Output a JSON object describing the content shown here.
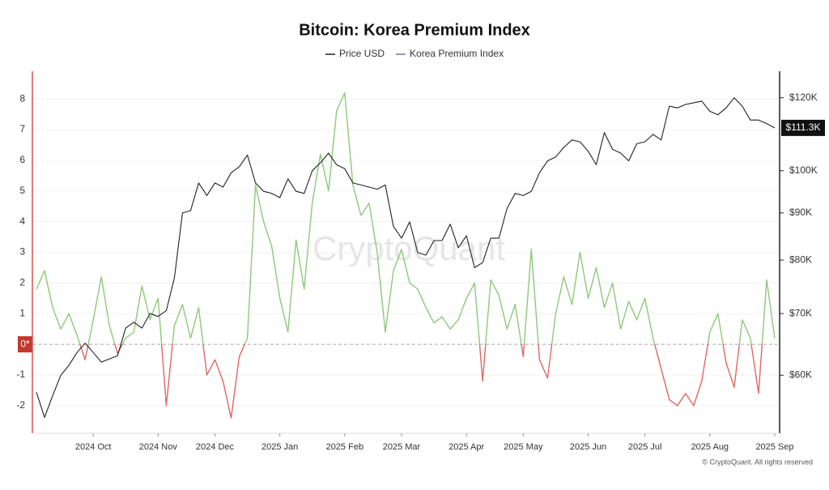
{
  "chart_data": {
    "type": "line",
    "title": "Bitcoin: Korea Premium Index",
    "watermark": "CryptoQuant",
    "footer": "© CryptoQuant. All rights reserved",
    "price_tag": "$111.3K",
    "categories": [
      null,
      null,
      null,
      null,
      null,
      null,
      null,
      "2024 Oct",
      null,
      null,
      null,
      null,
      null,
      null,
      null,
      "2024 Nov",
      null,
      null,
      null,
      null,
      null,
      null,
      "2024 Dec",
      null,
      null,
      null,
      null,
      null,
      null,
      null,
      "2025 Jan",
      null,
      null,
      null,
      null,
      null,
      null,
      null,
      "2025 Feb",
      null,
      null,
      null,
      null,
      null,
      null,
      "2025 Mar",
      null,
      null,
      null,
      null,
      null,
      null,
      null,
      "2025 Apr",
      null,
      null,
      null,
      null,
      null,
      null,
      "2025 May",
      null,
      null,
      null,
      null,
      null,
      null,
      null,
      "2025 Jun",
      null,
      null,
      null,
      null,
      null,
      null,
      "2025 Jul",
      null,
      null,
      null,
      null,
      null,
      null,
      null,
      "2025 Aug",
      null,
      null,
      null,
      null,
      null,
      null,
      null,
      "2025 Sep"
    ],
    "series": [
      {
        "name": "Price USD",
        "color": "#222222",
        "axis": "y2",
        "values": [
          57500,
          54000,
          57000,
          60000,
          61500,
          63500,
          65000,
          63500,
          62000,
          62500,
          63000,
          67500,
          68500,
          67500,
          70000,
          69500,
          70500,
          76500,
          90000,
          90500,
          97000,
          94000,
          97000,
          96000,
          99500,
          101000,
          104000,
          97000,
          95000,
          94500,
          93500,
          98000,
          95000,
          94500,
          100000,
          102000,
          104500,
          101500,
          100500,
          97000,
          96500,
          96000,
          95500,
          96500,
          87000,
          84500,
          88000,
          81500,
          81000,
          84000,
          84000,
          87500,
          82500,
          85000,
          78500,
          79500,
          84500,
          84500,
          91000,
          94500,
          94000,
          95000,
          99500,
          102500,
          103500,
          106000,
          108000,
          107500,
          105000,
          101500,
          110000,
          105500,
          104500,
          102500,
          107000,
          107500,
          109500,
          108000,
          117500,
          117000,
          118000,
          118500,
          119000,
          116000,
          115000,
          117000,
          120000,
          117500,
          113500,
          113500,
          112500,
          111300
        ]
      },
      {
        "name": "Korea Premium Index",
        "color": "#7b68c8",
        "positive_color": "#8cc97a",
        "negative_color": "#e06666",
        "values": [
          1.8,
          2.4,
          1.2,
          0.5,
          1.0,
          0.3,
          -0.5,
          0.8,
          2.2,
          0.6,
          -0.3,
          0.2,
          0.4,
          1.9,
          0.8,
          1.5,
          -2.0,
          0.6,
          1.3,
          0.2,
          1.2,
          -1.0,
          -0.5,
          -1.2,
          -2.4,
          -0.4,
          0.2,
          5.2,
          4.0,
          3.2,
          1.5,
          0.4,
          3.4,
          1.8,
          4.6,
          6.2,
          5.0,
          7.6,
          8.2,
          5.2,
          4.2,
          4.6,
          3.0,
          0.4,
          2.4,
          3.1,
          2.0,
          1.8,
          1.2,
          0.7,
          0.9,
          0.5,
          0.8,
          1.5,
          2.0,
          -1.2,
          2.1,
          1.6,
          0.5,
          1.3,
          -0.4,
          3.1,
          -0.5,
          -1.1,
          1.0,
          2.2,
          1.3,
          3.0,
          1.5,
          2.5,
          1.2,
          2.0,
          0.5,
          1.4,
          0.8,
          1.5,
          0.2,
          -0.8,
          -1.8,
          -2.0,
          -1.6,
          -2.0,
          -1.2,
          0.4,
          1.0,
          -0.6,
          -1.4,
          0.8,
          0.2,
          -1.6,
          2.1,
          0.2
        ]
      }
    ],
    "ylim": [
      -2.9,
      8.9
    ],
    "yticks": [
      -2,
      -1,
      {
        "value": 0,
        "label": "0*"
      },
      1,
      2,
      3,
      4,
      5,
      6,
      7,
      8
    ],
    "y2lim": [
      51900,
      128200
    ],
    "y2_log": true,
    "y2ticks": [
      {
        "value": 60000,
        "label": "$60K"
      },
      {
        "value": 70000,
        "label": "$70K"
      },
      {
        "value": 80000,
        "label": "$80K"
      },
      {
        "value": 90000,
        "label": "$90K"
      },
      {
        "value": 100000,
        "label": "$100K"
      },
      {
        "value": 120000,
        "label": "$120K"
      }
    ],
    "grid": true
  }
}
